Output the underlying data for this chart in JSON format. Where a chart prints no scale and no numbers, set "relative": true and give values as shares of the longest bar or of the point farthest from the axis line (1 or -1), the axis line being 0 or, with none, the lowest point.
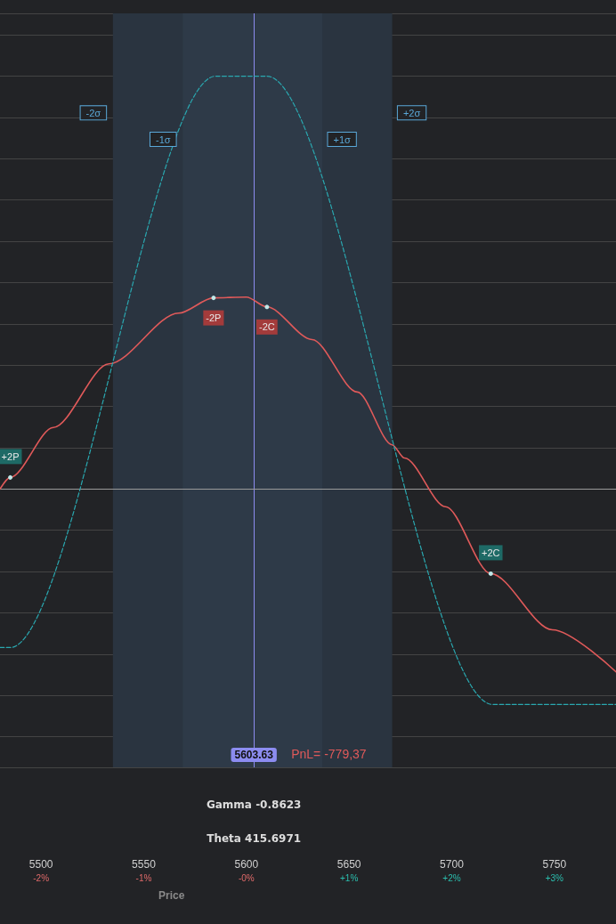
{
  "chart_data": {
    "type": "line",
    "relative": true,
    "xlabel": "Price",
    "xlim": [
      5480,
      5780
    ],
    "xticks": [
      5500,
      5550,
      5600,
      5650,
      5700,
      5750
    ],
    "grid": "y",
    "marker": "none",
    "series": [
      {
        "type": "line",
        "color": "#e05a5a",
        "line_style": "solid",
        "x": [
          5480,
          5485,
          5506,
          5533,
          5567,
          5584,
          5600,
          5610,
          5632,
          5654,
          5671,
          5677,
          5697,
          5719,
          5749,
          5780
        ],
        "values": [
          0,
          0.028,
          0.149,
          0.303,
          0.426,
          0.463,
          0.465,
          0.441,
          0.362,
          0.235,
          0.107,
          0.075,
          -0.043,
          -0.205,
          -0.341,
          -0.443
        ]
      },
      {
        "type": "line",
        "color": "#2aa8b0",
        "line_style": "dashed",
        "x": [
          5480,
          5485,
          5585,
          5610,
          5720,
          5780
        ],
        "values": [
          -0.384,
          -0.384,
          1,
          1,
          -0.522,
          -0.522
        ]
      }
    ],
    "bands": [
      {
        "axis": "x",
        "from": 5535,
        "to": 5671,
        "color": "#2a3440"
      },
      {
        "axis": "x",
        "from": 5569,
        "to": 5637,
        "color": "#2e3a48"
      }
    ],
    "ref_lines": [
      {
        "axis": "x",
        "value": 5603.63,
        "label": "5603.63",
        "color": "#8c8cf0"
      }
    ],
    "annotations": [
      {
        "text": "-2σ",
        "x": 5535,
        "y": 0.91
      },
      {
        "text": "+2σ",
        "x": 5671,
        "y": 0.91
      },
      {
        "text": "-1σ",
        "x": 5569,
        "y": 0.846
      },
      {
        "text": "+1σ",
        "x": 5637,
        "y": 0.846
      },
      {
        "text": "+2P",
        "x": 5485,
        "y": 0.028
      },
      {
        "text": "-2P",
        "x": 5584,
        "y": 0.463
      },
      {
        "text": "-2C",
        "x": 5610,
        "y": 0.441
      },
      {
        "text": "+2C",
        "x": 5719,
        "y": -0.205
      },
      "PnL= -779,37",
      "Gamma -0.8623",
      "Theta 415.6971",
      "-2%",
      "-1%",
      "-0%",
      "+1%",
      "+2%",
      "+3%"
    ]
  }
}
